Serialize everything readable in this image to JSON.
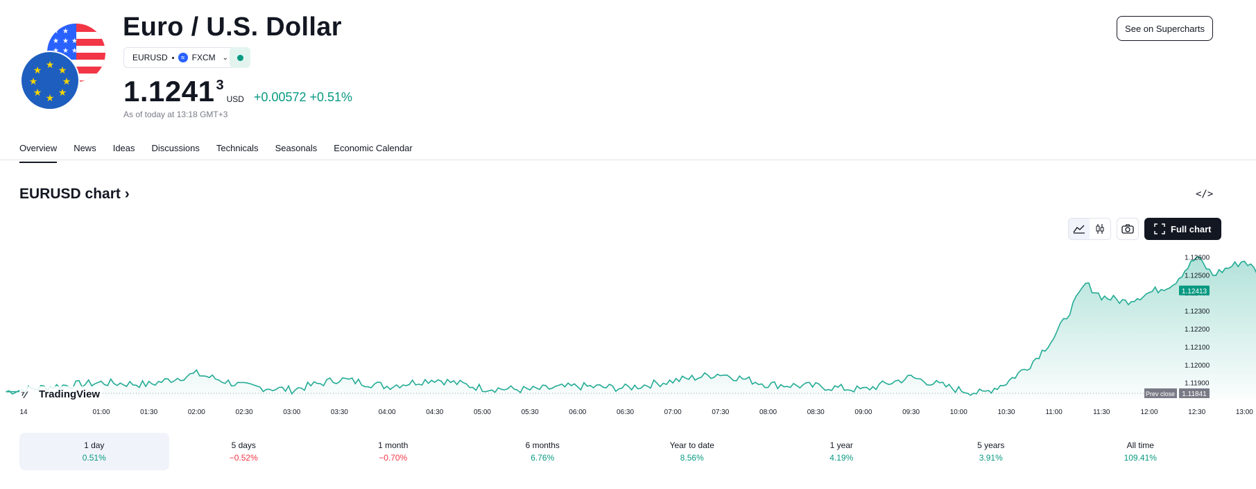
{
  "header": {
    "title": "Euro / U.S. Dollar",
    "symbol": "EURUSD",
    "exchange": "FXCM",
    "price_main": "1.1241",
    "price_sup": "3",
    "currency": "USD",
    "change": "+0.00572 +0.51%",
    "as_of": "As of today at 13:18 GMT+3",
    "supercharts_button": "See on Supercharts"
  },
  "tabs": [
    "Overview",
    "News",
    "Ideas",
    "Discussions",
    "Technicals",
    "Seasonals",
    "Economic Calendar"
  ],
  "active_tab": "Overview",
  "chart_section": {
    "title": "EURUSD chart",
    "full_chart_button": "Full chart",
    "watermark": "TradingView"
  },
  "chart_data": {
    "type": "area",
    "x_ticks": [
      "14",
      "01:00",
      "01:30",
      "02:00",
      "02:30",
      "03:00",
      "03:30",
      "04:00",
      "04:30",
      "05:00",
      "05:30",
      "06:00",
      "06:30",
      "07:00",
      "07:30",
      "08:00",
      "08:30",
      "09:00",
      "09:30",
      "10:00",
      "10:30",
      "11:00",
      "11:30",
      "12:00",
      "12:30",
      "13:00"
    ],
    "y_ticks": [
      "1.12600",
      "1.12500",
      "1.12400",
      "1.12300",
      "1.12200",
      "1.12100",
      "1.12000",
      "1.11900"
    ],
    "ylim": [
      1.1181,
      1.1264
    ],
    "x": [
      "00:00",
      "00:30",
      "01:00",
      "01:30",
      "02:00",
      "02:30",
      "03:00",
      "03:30",
      "04:00",
      "04:30",
      "05:00",
      "05:30",
      "06:00",
      "06:30",
      "07:00",
      "07:30",
      "08:00",
      "08:30",
      "09:00",
      "09:30",
      "10:00",
      "10:15",
      "10:30",
      "10:45",
      "11:00",
      "11:10",
      "11:20",
      "11:30",
      "11:45",
      "12:00",
      "12:15",
      "12:30",
      "12:40",
      "12:50",
      "13:00",
      "13:10",
      "13:18"
    ],
    "y": [
      1.1185,
      1.1188,
      1.119,
      1.1189,
      1.1195,
      1.1188,
      1.1186,
      1.1192,
      1.1188,
      1.1192,
      1.1187,
      1.1186,
      1.1188,
      1.1187,
      1.1191,
      1.1195,
      1.1189,
      1.1188,
      1.1186,
      1.1193,
      1.1186,
      1.1184,
      1.119,
      1.12,
      1.1215,
      1.123,
      1.1245,
      1.1238,
      1.1235,
      1.124,
      1.1245,
      1.126,
      1.125,
      1.1254,
      1.1258,
      1.125,
      1.12413
    ],
    "current_value": "1.12413",
    "prev_close_label": "Prev close",
    "prev_close": "1.11841",
    "color": "#22ab94"
  },
  "periods": [
    {
      "label": "1 day",
      "value": "0.51%",
      "dir": "pos"
    },
    {
      "label": "5 days",
      "value": "−0.52%",
      "dir": "neg"
    },
    {
      "label": "1 month",
      "value": "−0.70%",
      "dir": "neg"
    },
    {
      "label": "6 months",
      "value": "6.76%",
      "dir": "pos"
    },
    {
      "label": "Year to date",
      "value": "8.56%",
      "dir": "pos"
    },
    {
      "label": "1 year",
      "value": "4.19%",
      "dir": "pos"
    },
    {
      "label": "5 years",
      "value": "3.91%",
      "dir": "pos"
    },
    {
      "label": "All time",
      "value": "109.41%",
      "dir": "pos"
    }
  ],
  "colors": {
    "positive": "#089981",
    "negative": "#f23645",
    "accent": "#22ab94"
  }
}
